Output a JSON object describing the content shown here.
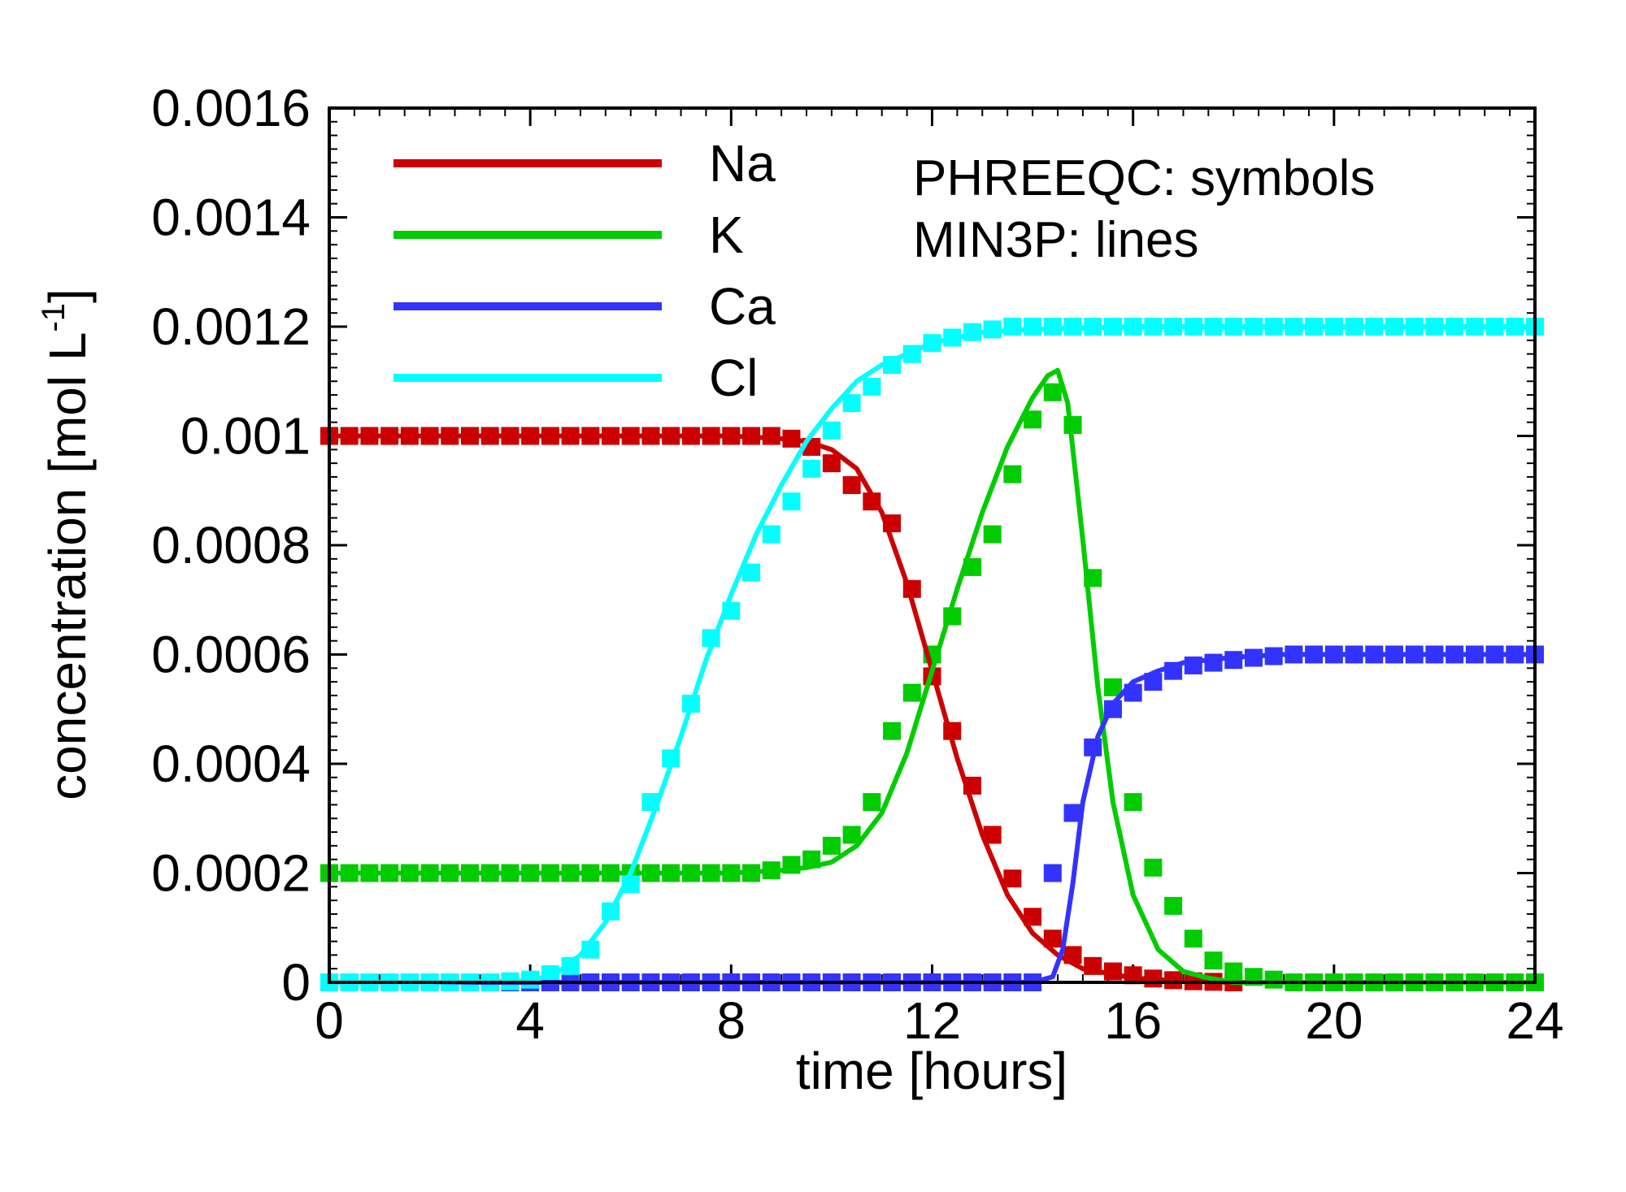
{
  "chart_data": {
    "type": "line",
    "xlabel": "time [hours]",
    "ylabel_main": "concentration [mol L",
    "ylabel_sup": "-1",
    "ylabel_tail": "]",
    "xlim": [
      0,
      24
    ],
    "ylim": [
      0,
      0.0016
    ],
    "x_ticks": [
      0,
      4,
      8,
      12,
      16,
      20,
      24
    ],
    "x_tick_labels": [
      "0",
      "4",
      "8",
      "12",
      "16",
      "20",
      "24"
    ],
    "y_ticks": [
      0,
      0.0002,
      0.0004,
      0.0006,
      0.0008,
      0.001,
      0.0012,
      0.0014,
      0.0016
    ],
    "y_tick_labels": [
      "0",
      "0.0002",
      "0.0004",
      "0.0006",
      "0.0008",
      "0.001",
      "0.0012",
      "0.0014",
      "0.0016"
    ],
    "grid": false,
    "legend_position": "top-left",
    "annotations": [
      "PHREEQC: symbols",
      "MIN3P: lines"
    ],
    "series": [
      {
        "name": "Na",
        "color": "#cc0000",
        "line": {
          "x": [
            0,
            2,
            4,
            6,
            8,
            9,
            9.5,
            10,
            10.5,
            11,
            11.5,
            12,
            12.5,
            13,
            13.5,
            14,
            14.5,
            15,
            16,
            17,
            18,
            19,
            20
          ],
          "y": [
            0.001,
            0.001,
            0.001,
            0.001,
            0.001,
            0.000995,
            0.00099,
            0.000975,
            0.00094,
            0.00086,
            0.00073,
            0.00057,
            0.00041,
            0.00027,
            0.00016,
            9e-05,
            5e-05,
            2.5e-05,
            8e-06,
            2e-06,
            0,
            0,
            0
          ]
        },
        "markers": {
          "x": [
            0,
            0.4,
            0.8,
            1.2,
            1.6,
            2.0,
            2.4,
            2.8,
            3.2,
            3.6,
            4.0,
            4.4,
            4.8,
            5.2,
            5.6,
            6.0,
            6.4,
            6.8,
            7.2,
            7.6,
            8.0,
            8.4,
            8.8,
            9.2,
            9.6,
            10.0,
            10.4,
            10.8,
            11.2,
            11.6,
            12.0,
            12.4,
            12.8,
            13.2,
            13.6,
            14.0,
            14.4,
            14.8,
            15.2,
            15.6,
            16.0,
            16.4,
            16.8,
            17.2,
            17.6,
            18.0
          ],
          "y": [
            0.001,
            0.001,
            0.001,
            0.001,
            0.001,
            0.001,
            0.001,
            0.001,
            0.001,
            0.001,
            0.001,
            0.001,
            0.001,
            0.001,
            0.001,
            0.001,
            0.001,
            0.001,
            0.001,
            0.001,
            0.001,
            0.001,
            0.001,
            0.000995,
            0.00098,
            0.00095,
            0.00091,
            0.00088,
            0.00084,
            0.00072,
            0.00056,
            0.00046,
            0.00036,
            0.00027,
            0.00019,
            0.00012,
            8e-05,
            5e-05,
            3e-05,
            2e-05,
            1.3e-05,
            7e-06,
            4e-06,
            2e-06,
            1e-06,
            0
          ]
        }
      },
      {
        "name": "K",
        "color": "#00cc00",
        "line": {
          "x": [
            0,
            2,
            4,
            6,
            8,
            9,
            9.5,
            10,
            10.5,
            11,
            11.5,
            12,
            12.5,
            13,
            13.5,
            14,
            14.3,
            14.5,
            14.7,
            15,
            15.3,
            15.6,
            16,
            16.5,
            17,
            17.5,
            18,
            19,
            20,
            22,
            24
          ],
          "y": [
            0.0002,
            0.0002,
            0.0002,
            0.0002,
            0.0002,
            0.000205,
            0.00021,
            0.00022,
            0.00025,
            0.00031,
            0.00042,
            0.00057,
            0.00072,
            0.00086,
            0.00098,
            0.00107,
            0.00111,
            0.00112,
            0.00106,
            0.00081,
            0.00054,
            0.00033,
            0.00016,
            6e-05,
            2e-05,
            8e-06,
            0,
            0,
            0,
            0,
            0
          ]
        },
        "markers": {
          "x": [
            0,
            0.4,
            0.8,
            1.2,
            1.6,
            2.0,
            2.4,
            2.8,
            3.2,
            3.6,
            4.0,
            4.4,
            4.8,
            5.2,
            5.6,
            6.0,
            6.4,
            6.8,
            7.2,
            7.6,
            8.0,
            8.4,
            8.8,
            9.2,
            9.6,
            10.0,
            10.4,
            10.8,
            11.2,
            11.6,
            12.0,
            12.4,
            12.8,
            13.2,
            13.6,
            14.0,
            14.4,
            14.8,
            15.2,
            15.6,
            16.0,
            16.4,
            16.8,
            17.2,
            17.6,
            18.0,
            18.4,
            18.8,
            19.2,
            19.6,
            20.0,
            20.4,
            20.8,
            21.2,
            21.6,
            22.0,
            22.4,
            22.8,
            23.2,
            23.6,
            24.0
          ],
          "y": [
            0.0002,
            0.0002,
            0.0002,
            0.0002,
            0.0002,
            0.0002,
            0.0002,
            0.0002,
            0.0002,
            0.0002,
            0.0002,
            0.0002,
            0.0002,
            0.0002,
            0.0002,
            0.0002,
            0.0002,
            0.0002,
            0.0002,
            0.0002,
            0.0002,
            0.0002,
            0.000205,
            0.000215,
            0.000225,
            0.00025,
            0.00027,
            0.00033,
            0.00046,
            0.00053,
            0.0006,
            0.00067,
            0.00076,
            0.00082,
            0.00093,
            0.00103,
            0.00108,
            0.00102,
            0.00074,
            0.00054,
            0.00033,
            0.00021,
            0.00014,
            8e-05,
            4e-05,
            2e-05,
            1e-05,
            5e-06,
            0,
            0,
            0,
            0,
            0,
            0,
            0,
            0,
            0,
            0,
            0,
            0,
            0
          ]
        }
      },
      {
        "name": "Ca",
        "color": "#3333ff",
        "line": {
          "x": [
            0,
            4,
            8,
            12,
            14,
            14.4,
            14.6,
            14.8,
            15,
            15.3,
            15.6,
            16,
            16.5,
            17,
            18,
            19,
            20,
            22,
            24
          ],
          "y": [
            0,
            0,
            0,
            0,
            0,
            1e-05,
            6e-05,
            0.00018,
            0.00033,
            0.00045,
            0.00051,
            0.00055,
            0.00057,
            0.000585,
            0.000595,
            0.0006,
            0.0006,
            0.0006,
            0.0006
          ]
        },
        "markers": {
          "x": [
            0,
            0.4,
            0.8,
            1.2,
            1.6,
            2.0,
            2.4,
            2.8,
            3.2,
            3.6,
            4.0,
            4.4,
            4.8,
            5.2,
            5.6,
            6.0,
            6.4,
            6.8,
            7.2,
            7.6,
            8.0,
            8.4,
            8.8,
            9.2,
            9.6,
            10.0,
            10.4,
            10.8,
            11.2,
            11.6,
            12.0,
            12.4,
            12.8,
            13.2,
            13.6,
            14.0,
            14.4,
            14.8,
            15.2,
            15.6,
            16.0,
            16.4,
            16.8,
            17.2,
            17.6,
            18.0,
            18.4,
            18.8,
            19.2,
            19.6,
            20.0,
            20.4,
            20.8,
            21.2,
            21.6,
            22.0,
            22.4,
            22.8,
            23.2,
            23.6,
            24.0
          ],
          "y": [
            0,
            0,
            0,
            0,
            0,
            0,
            0,
            0,
            0,
            0,
            0,
            0,
            0,
            0,
            0,
            0,
            0,
            0,
            0,
            0,
            0,
            0,
            0,
            0,
            0,
            0,
            0,
            0,
            0,
            0,
            0,
            0,
            0,
            0,
            0,
            0,
            0.0002,
            0.00031,
            0.00043,
            0.0005,
            0.00053,
            0.00055,
            0.00057,
            0.00058,
            0.000585,
            0.00059,
            0.000594,
            0.000597,
            0.0006,
            0.0006,
            0.0006,
            0.0006,
            0.0006,
            0.0006,
            0.0006,
            0.0006,
            0.0006,
            0.0006,
            0.0006,
            0.0006,
            0.0006
          ]
        }
      },
      {
        "name": "Cl",
        "color": "#00ffff",
        "line": {
          "x": [
            0,
            2,
            4,
            4.5,
            5,
            5.5,
            6,
            6.5,
            7,
            7.5,
            8,
            8.5,
            9,
            9.5,
            10,
            10.5,
            11,
            11.5,
            12,
            13,
            14,
            16,
            18,
            20,
            22,
            24
          ],
          "y": [
            0,
            0,
            3e-06,
            1.5e-05,
            5e-05,
            0.00011,
            0.0002,
            0.00032,
            0.00045,
            0.00059,
            0.00071,
            0.00082,
            0.00091,
            0.00099,
            0.00105,
            0.0011,
            0.00113,
            0.00115,
            0.00117,
            0.00119,
            0.001195,
            0.0012,
            0.0012,
            0.0012,
            0.0012,
            0.0012
          ]
        },
        "markers": {
          "x": [
            0,
            0.4,
            0.8,
            1.2,
            1.6,
            2.0,
            2.4,
            2.8,
            3.2,
            3.6,
            4.0,
            4.4,
            4.8,
            5.2,
            5.6,
            6.0,
            6.4,
            6.8,
            7.2,
            7.6,
            8.0,
            8.4,
            8.8,
            9.2,
            9.6,
            10.0,
            10.4,
            10.8,
            11.2,
            11.6,
            12.0,
            12.4,
            12.8,
            13.2,
            13.6,
            14.0,
            14.4,
            14.8,
            15.2,
            15.6,
            16.0,
            16.4,
            16.8,
            17.2,
            17.6,
            18.0,
            18.4,
            18.8,
            19.2,
            19.6,
            20.0,
            20.4,
            20.8,
            21.2,
            21.6,
            22.0,
            22.4,
            22.8,
            23.2,
            23.6,
            24.0
          ],
          "y": [
            0,
            0,
            0,
            0,
            0,
            0,
            0,
            0,
            0,
            2e-06,
            5e-06,
            1.5e-05,
            3e-05,
            6e-05,
            0.00013,
            0.00018,
            0.00033,
            0.00041,
            0.00051,
            0.00063,
            0.00068,
            0.00075,
            0.00082,
            0.00088,
            0.00094,
            0.00101,
            0.00106,
            0.00109,
            0.00113,
            0.00115,
            0.00117,
            0.00118,
            0.00119,
            0.001195,
            0.0012,
            0.0012,
            0.0012,
            0.0012,
            0.0012,
            0.0012,
            0.0012,
            0.0012,
            0.0012,
            0.0012,
            0.0012,
            0.0012,
            0.0012,
            0.0012,
            0.0012,
            0.0012,
            0.0012,
            0.0012,
            0.0012,
            0.0012,
            0.0012,
            0.0012,
            0.0012,
            0.0012,
            0.0012,
            0.0012,
            0.0012
          ]
        }
      }
    ]
  }
}
